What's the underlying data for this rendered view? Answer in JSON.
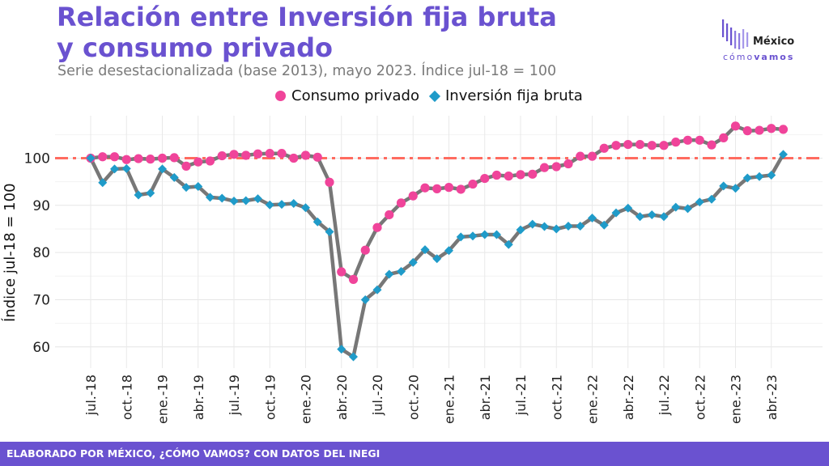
{
  "header": {
    "title": "Relación entre Inversión fija bruta y consumo privado",
    "subtitle": "Serie desestacionalizada (base 2013), mayo 2023. Índice jul-18 = 100"
  },
  "logo": {
    "word1": "México",
    "word2a": "cómo",
    "word2b": "vamos"
  },
  "footer": {
    "text": "ELABORADO POR MÉXICO, ¿CÓMO VAMOS? CON DATOS DEL INEGI"
  },
  "colors": {
    "consumo": "#f0449a",
    "inversion": "#1f9bc9",
    "line": "#777777",
    "reference": "#ff6b5f",
    "brand": "#6a52d0"
  },
  "chart_data": {
    "type": "line",
    "ylabel": "Índice jul-18 = 100",
    "ylim": [
      55.5,
      109
    ],
    "yticks": [
      60,
      70,
      80,
      90,
      100
    ],
    "reference_line": 100,
    "grid": true,
    "legend_position": "top",
    "x": [
      "jul.-18",
      "ago.-18",
      "sep.-18",
      "oct.-18",
      "nov.-18",
      "dic.-18",
      "ene.-19",
      "feb.-19",
      "mar.-19",
      "abr.-19",
      "may.-19",
      "jun.-19",
      "jul.-19",
      "ago.-19",
      "sep.-19",
      "oct.-19",
      "nov.-19",
      "dic.-19",
      "ene.-20",
      "feb.-20",
      "mar.-20",
      "abr.-20",
      "may.-20",
      "jun.-20",
      "jul.-20",
      "ago.-20",
      "sep.-20",
      "oct.-20",
      "nov.-20",
      "dic.-20",
      "ene.-21",
      "feb.-21",
      "mar.-21",
      "abr.-21",
      "may.-21",
      "jun.-21",
      "jul.-21",
      "ago.-21",
      "sep.-21",
      "oct.-21",
      "nov.-21",
      "dic.-21",
      "ene.-22",
      "feb.-22",
      "mar.-22",
      "abr.-22",
      "may.-22",
      "jun.-22",
      "jul.-22",
      "ago.-22",
      "sep.-22",
      "oct.-22",
      "nov.-22",
      "dic.-22",
      "ene.-23",
      "feb.-23",
      "mar.-23",
      "abr.-23",
      "may.-23"
    ],
    "xtick_labels": [
      "jul.-18",
      "oct.-18",
      "ene.-19",
      "abr.-19",
      "jul.-19",
      "oct.-19",
      "ene.-20",
      "abr.-20",
      "jul.-20",
      "oct.-20",
      "ene.-21",
      "abr.-21",
      "jul.-21",
      "oct.-21",
      "ene.-22",
      "abr.-22",
      "jul.-22",
      "oct.-22",
      "ene.-23",
      "abr.-23"
    ],
    "series": [
      {
        "name": "Consumo privado",
        "marker": "circle",
        "values": [
          100,
          100.3,
          100.3,
          99.7,
          99.9,
          99.8,
          100,
          100.1,
          98.3,
          99.2,
          99.4,
          100.5,
          100.8,
          100.6,
          100.9,
          101,
          101,
          100,
          100.6,
          100.2,
          94.9,
          75.9,
          74.3,
          80.5,
          85.3,
          88,
          90.5,
          92,
          93.7,
          93.5,
          93.8,
          93.4,
          94.5,
          95.7,
          96.4,
          96.2,
          96.5,
          96.6,
          98,
          98.2,
          98.8,
          100.4,
          100.4,
          102.1,
          102.7,
          102.9,
          102.9,
          102.7,
          102.7,
          103.4,
          103.8,
          103.8,
          102.8,
          104.3,
          106.8,
          105.8,
          105.9,
          106.3,
          106.1
        ]
      },
      {
        "name": "Inversión fija bruta",
        "marker": "diamond",
        "values": [
          100,
          94.8,
          97.7,
          97.8,
          92.2,
          92.6,
          97.7,
          95.9,
          93.8,
          94,
          91.7,
          91.5,
          90.9,
          91,
          91.4,
          90.1,
          90.2,
          90.4,
          89.5,
          86.5,
          84.4,
          59.5,
          57.9,
          70,
          72.1,
          75.4,
          76,
          77.9,
          80.6,
          78.7,
          80.4,
          83.3,
          83.5,
          83.8,
          83.8,
          81.7,
          84.8,
          86,
          85.5,
          85,
          85.6,
          85.6,
          87.3,
          85.8,
          88.4,
          89.4,
          87.6,
          88,
          87.6,
          89.6,
          89.3,
          90.7,
          91.3,
          94.1,
          93.6,
          95.8,
          96.1,
          96.4,
          100.8
        ]
      }
    ]
  }
}
